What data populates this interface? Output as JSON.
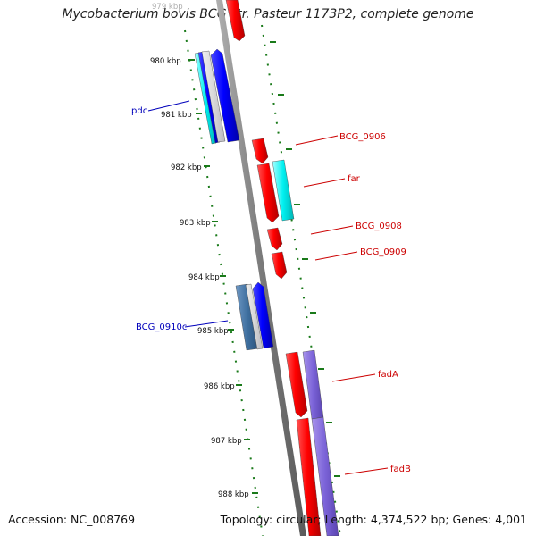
{
  "header": {
    "title": "Mycobacterium bovis BCG str. Pasteur 1173P2, complete genome"
  },
  "footer": {
    "accession": "Accession: NC_008769",
    "topology": "Topology: circular; Length: 4,374,522 bp; Genes: 4,001"
  },
  "colors": {
    "backbone": "#8a8a8a",
    "tick_color": "#1a7a1a",
    "forward_label": "#cc0000",
    "reverse_label": "#0000bb"
  },
  "map": {
    "kbp_labels": [
      {
        "label": "979 kbp",
        "kb": 979,
        "faded": true
      },
      {
        "label": "980 kbp",
        "kb": 980
      },
      {
        "label": "981 kbp",
        "kb": 981
      },
      {
        "label": "982 kbp",
        "kb": 982
      },
      {
        "label": "983 kbp",
        "kb": 983
      },
      {
        "label": "984 kbp",
        "kb": 984
      },
      {
        "label": "985 kbp",
        "kb": 985
      },
      {
        "label": "986 kbp",
        "kb": 986
      },
      {
        "label": "987 kbp",
        "kb": 987
      },
      {
        "label": "988 kbp",
        "kb": 988
      }
    ],
    "gene_labels": [
      {
        "text": "pdc",
        "strand": "reverse"
      },
      {
        "text": "BCG_0910c",
        "strand": "reverse"
      },
      {
        "text": "BCG_0906",
        "strand": "forward"
      },
      {
        "text": "far",
        "strand": "forward"
      },
      {
        "text": "BCG_0908",
        "strand": "forward"
      },
      {
        "text": "BCG_0909",
        "strand": "forward"
      },
      {
        "text": "fadA",
        "strand": "forward"
      },
      {
        "text": "fadB",
        "strand": "forward"
      }
    ]
  }
}
